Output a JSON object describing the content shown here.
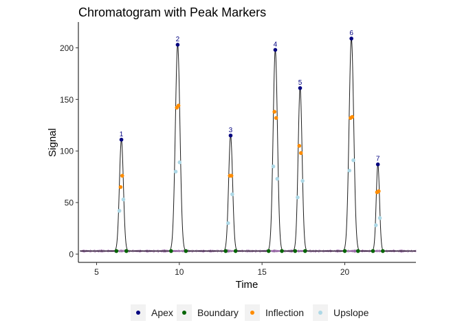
{
  "chart_data": {
    "type": "line",
    "title": "Chromatogram with Peak Markers",
    "xlabel": "Time",
    "ylabel": "Signal",
    "xlim": [
      3.9,
      24.3
    ],
    "ylim": [
      -8,
      225
    ],
    "x_ticks": [
      5,
      10,
      15,
      20
    ],
    "y_ticks": [
      0,
      50,
      100,
      150,
      200
    ],
    "grid": false,
    "legend_position": "bottom",
    "baseline": 3,
    "colors": {
      "trace": "#1a1a1a",
      "noise": "#7b3f8c",
      "Apex": "#00007f",
      "Boundary": "#006400",
      "Inflection": "#ff8c00",
      "Upslope": "#add8e6"
    },
    "peaks": [
      {
        "label": "1",
        "time": 6.5,
        "height": 111,
        "width": 0.12
      },
      {
        "label": "2",
        "time": 9.9,
        "height": 203,
        "width": 0.14
      },
      {
        "label": "3",
        "time": 13.1,
        "height": 115,
        "width": 0.12
      },
      {
        "label": "4",
        "time": 15.8,
        "height": 198,
        "width": 0.13
      },
      {
        "label": "5",
        "time": 17.3,
        "height": 161,
        "width": 0.12
      },
      {
        "label": "6",
        "time": 20.4,
        "height": 209,
        "width": 0.14
      },
      {
        "label": "7",
        "time": 22.0,
        "height": 87,
        "width": 0.1
      }
    ],
    "series": [
      {
        "name": "Apex",
        "x": [
          6.5,
          9.9,
          13.1,
          15.8,
          17.3,
          20.4,
          22.0
        ],
        "y": [
          111,
          203,
          115,
          198,
          161,
          209,
          87
        ]
      },
      {
        "name": "Boundary",
        "x": [
          6.2,
          6.8,
          9.5,
          10.4,
          12.8,
          13.4,
          15.4,
          16.2,
          17.0,
          17.6,
          20.0,
          20.8,
          21.7,
          22.3
        ],
        "y": [
          3,
          3,
          3,
          3,
          3,
          3,
          3,
          3,
          3,
          3,
          3,
          3,
          3,
          3
        ]
      },
      {
        "name": "Inflection",
        "x": [
          6.45,
          6.55,
          9.85,
          9.95,
          13.05,
          13.15,
          15.75,
          15.85,
          17.25,
          17.35,
          20.35,
          20.45,
          21.95,
          22.05
        ],
        "y": [
          65,
          76,
          142,
          144,
          76,
          76,
          138,
          132,
          105,
          98,
          132,
          133,
          60,
          61
        ]
      },
      {
        "name": "Upslope",
        "x": [
          6.38,
          6.62,
          9.78,
          10.02,
          12.95,
          13.2,
          15.68,
          15.92,
          17.15,
          17.45,
          20.28,
          20.52,
          21.88,
          22.12
        ],
        "y": [
          42,
          53,
          80,
          89,
          30,
          58,
          85,
          73,
          55,
          71,
          81,
          91,
          28,
          35
        ]
      }
    ]
  }
}
